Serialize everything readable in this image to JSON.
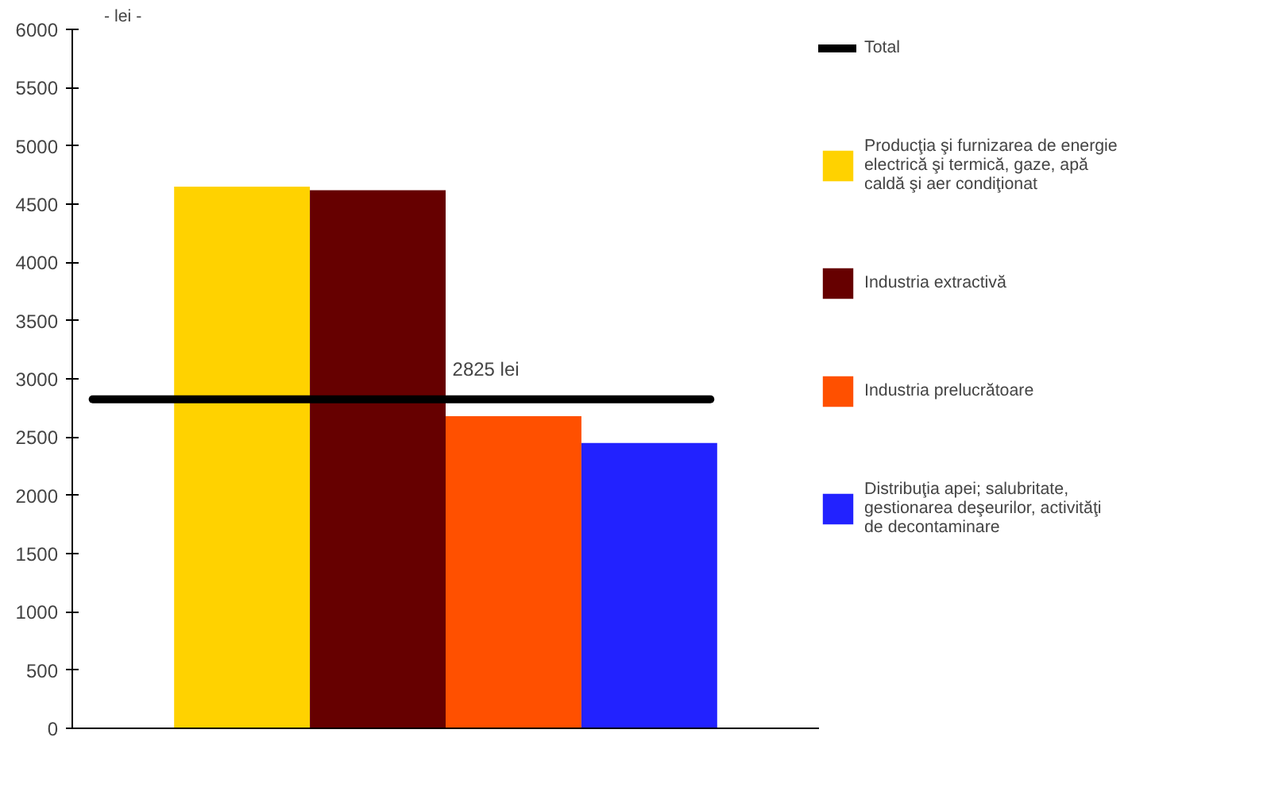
{
  "chart_data": {
    "type": "bar",
    "ylabel": "- lei -",
    "categories": [
      null,
      null,
      null,
      null
    ],
    "series": [
      {
        "name": "Producţia şi furnizarea de energie electrică şi termică, gaze, apă caldă şi aer condiţionat",
        "color": "#ffd200",
        "values": [
          4650,
          null,
          null,
          null
        ]
      },
      {
        "name": "Industria extractivă",
        "color": "#660000",
        "values": [
          null,
          4620,
          null,
          null
        ]
      },
      {
        "name": "Industria prelucrătoare",
        "color": "#ff5000",
        "values": [
          null,
          null,
          2680,
          null
        ]
      },
      {
        "name": "Distribuţia apei; salubritate, gestionarea deşeurilor, activităţi de decontaminare",
        "color": "#2222ff",
        "values": [
          null,
          null,
          null,
          2450
        ]
      }
    ],
    "ref_lines": [
      {
        "axis": "y",
        "value": 2825,
        "label": "Total",
        "color": "#000000"
      }
    ],
    "annotations": [
      "2825 lei"
    ],
    "ylim": [
      0,
      6000
    ],
    "yticks": [
      0,
      500,
      1000,
      1500,
      2000,
      2500,
      3000,
      3500,
      4000,
      4500,
      5000,
      5500,
      6000
    ],
    "grid": false,
    "legend": "right"
  }
}
